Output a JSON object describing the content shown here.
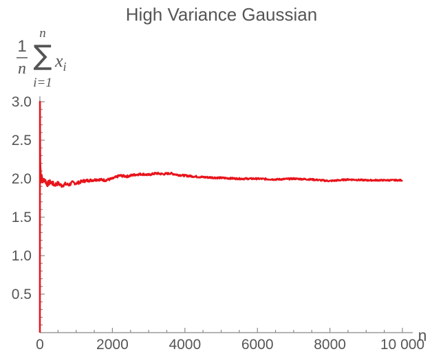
{
  "chart_data": {
    "type": "line",
    "title": "High Variance Gaussian",
    "xlabel": "n",
    "ylabel": {
      "numerator": "1",
      "denominator": "n",
      "sum_upper": "n",
      "sum_lower": "i=1",
      "summand": "x",
      "summand_index": "i"
    },
    "xlim": [
      0,
      10000
    ],
    "ylim": [
      0,
      3.0
    ],
    "x_ticks": [
      0,
      2000,
      4000,
      6000,
      8000,
      10000
    ],
    "x_tick_labels": [
      "0",
      "2000",
      "4000",
      "6000",
      "8000",
      "10 000"
    ],
    "y_ticks": [
      0.5,
      1.0,
      1.5,
      2.0,
      2.5,
      3.0
    ],
    "y_tick_labels": [
      "0.5",
      "1.0",
      "1.5",
      "2.0",
      "2.5",
      "3.0"
    ],
    "grid": false,
    "series": [
      {
        "color": "#e8141b",
        "x": [
          0,
          2,
          5,
          10,
          20,
          30,
          50,
          80,
          120,
          200,
          300,
          400,
          500,
          600,
          700,
          800,
          900,
          1000,
          1200,
          1400,
          1600,
          1800,
          2000,
          2200,
          2400,
          2600,
          2800,
          3000,
          3200,
          3400,
          3600,
          3800,
          4000,
          4500,
          5000,
          5500,
          6000,
          6500,
          7000,
          7500,
          8000,
          8500,
          9000,
          9500,
          10000
        ],
        "y": [
          0.0,
          3.0,
          2.5,
          2.2,
          2.1,
          1.95,
          2.05,
          1.95,
          2.0,
          1.93,
          1.96,
          1.92,
          1.94,
          1.91,
          1.93,
          1.92,
          1.95,
          1.94,
          1.97,
          1.98,
          1.99,
          1.98,
          2.0,
          2.04,
          2.03,
          2.05,
          2.06,
          2.05,
          2.07,
          2.06,
          2.07,
          2.05,
          2.04,
          2.02,
          2.01,
          2.0,
          2.0,
          1.99,
          2.0,
          1.99,
          1.97,
          1.99,
          1.98,
          1.98,
          1.98
        ]
      }
    ]
  }
}
